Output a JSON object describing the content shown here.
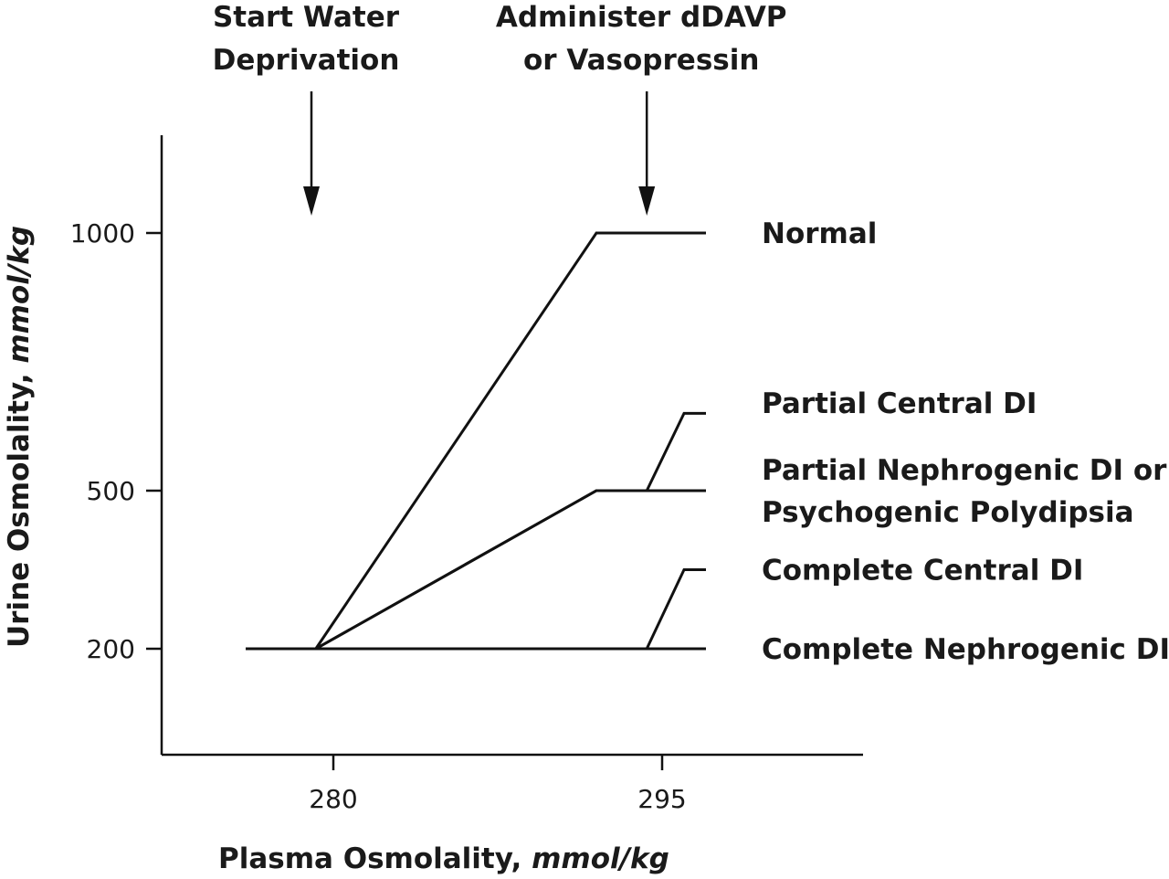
{
  "chart_data": {
    "type": "line",
    "xlabel": {
      "text": "Plasma Osmolality, ",
      "unit": "mmol/kg"
    },
    "ylabel": {
      "text": "Urine Osmolality, ",
      "unit": "mmol/kg"
    },
    "x_ticks": [
      280,
      295
    ],
    "y_ticks": [
      200,
      500,
      1000
    ],
    "grid": false,
    "annotations": [
      {
        "id": "start",
        "line1": "Start Water",
        "line2": "Deprivation",
        "x": 279
      },
      {
        "id": "administer",
        "line1": "Administer dDAVP",
        "line2": "or Vasopressin",
        "x": 294.3
      }
    ],
    "series": [
      {
        "name": "Normal",
        "points": [
          [
            279.2,
            200
          ],
          [
            292,
            1000
          ],
          [
            297,
            1000
          ]
        ]
      },
      {
        "name": "Partial Central DI",
        "points": [
          [
            279.2,
            200
          ],
          [
            292,
            500
          ],
          [
            294.3,
            500
          ],
          [
            296,
            650
          ],
          [
            297,
            650
          ]
        ]
      },
      {
        "name": "Partial Nephrogenic DI or Psychogenic Polydipsia",
        "points": [
          [
            279.2,
            200
          ],
          [
            292,
            500
          ],
          [
            297,
            500
          ]
        ]
      },
      {
        "name": "Complete Central DI",
        "points": [
          [
            279.2,
            200
          ],
          [
            294.3,
            200
          ],
          [
            296,
            350
          ],
          [
            297,
            350
          ]
        ]
      },
      {
        "name": "Complete Nephrogenic DI",
        "points": [
          [
            276,
            200
          ],
          [
            297,
            200
          ]
        ]
      }
    ],
    "series_labels": [
      {
        "lines": [
          "Normal"
        ],
        "y": 1000
      },
      {
        "lines": [
          "Partial Central DI"
        ],
        "y": 670
      },
      {
        "lines": [
          "Partial Nephrogenic DI or",
          "Psychogenic Polydipsia"
        ],
        "y": 500
      },
      {
        "lines": [
          "Complete Central DI"
        ],
        "y": 350
      },
      {
        "lines": [
          "Complete Nephrogenic DI"
        ],
        "y": 200
      }
    ],
    "colors": {
      "line": "#111111",
      "text": "#1a1a1a",
      "background": "#ffffff"
    }
  }
}
